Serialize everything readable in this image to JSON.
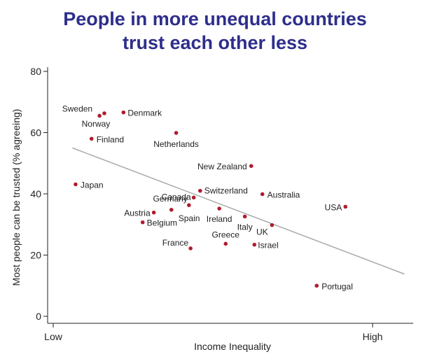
{
  "chart_data": {
    "type": "scatter",
    "title_lines": [
      "People in more unequal countries",
      "trust each other less"
    ],
    "xlabel": "Income Inequality",
    "ylabel": "Most people can be trusted (% agreeing)",
    "x_tick_labels": [
      "Low",
      "High"
    ],
    "x_scale": "ordinal-like, unnumbered (0 = Low, 10 = High)",
    "xlim": [
      0,
      11.2
    ],
    "ylim": [
      0,
      80
    ],
    "y_ticks": [
      0,
      20,
      40,
      60,
      80
    ],
    "grid": false,
    "legend": "none",
    "colors": {
      "point": "#b01c2e",
      "trend": "#aaaaaa",
      "title": "#2e2e8c",
      "axis": "#222222"
    },
    "points": [
      {
        "label": "Sweden",
        "x": 1.45,
        "y": 65.5
      },
      {
        "label": "Norway",
        "x": 1.6,
        "y": 66.3
      },
      {
        "label": "Denmark",
        "x": 2.2,
        "y": 66.6
      },
      {
        "label": "Finland",
        "x": 1.2,
        "y": 58.0
      },
      {
        "label": "Netherlands",
        "x": 3.85,
        "y": 59.9
      },
      {
        "label": "Japan",
        "x": 0.7,
        "y": 43.1
      },
      {
        "label": "New Zealand",
        "x": 6.2,
        "y": 49.1
      },
      {
        "label": "Switzerland",
        "x": 4.6,
        "y": 41.0
      },
      {
        "label": "Canada",
        "x": 4.4,
        "y": 38.8
      },
      {
        "label": "Australia",
        "x": 6.55,
        "y": 39.9
      },
      {
        "label": "USA",
        "x": 9.15,
        "y": 35.8
      },
      {
        "label": "Germany",
        "x": 4.25,
        "y": 36.3
      },
      {
        "label": "Austria",
        "x": 3.15,
        "y": 33.9
      },
      {
        "label": "Spain",
        "x": 3.7,
        "y": 34.8
      },
      {
        "label": "Ireland",
        "x": 5.2,
        "y": 35.2
      },
      {
        "label": "Belgium",
        "x": 2.8,
        "y": 30.7
      },
      {
        "label": "Italy",
        "x": 6.0,
        "y": 32.6
      },
      {
        "label": "UK",
        "x": 6.85,
        "y": 29.8
      },
      {
        "label": "France",
        "x": 4.3,
        "y": 22.2
      },
      {
        "label": "Greece",
        "x": 5.4,
        "y": 23.7
      },
      {
        "label": "Israel",
        "x": 6.3,
        "y": 23.4
      },
      {
        "label": "Portugal",
        "x": 8.25,
        "y": 10.0
      }
    ],
    "trendline": {
      "x": [
        0.6,
        11.0
      ],
      "y": [
        55.0,
        13.8
      ]
    }
  }
}
